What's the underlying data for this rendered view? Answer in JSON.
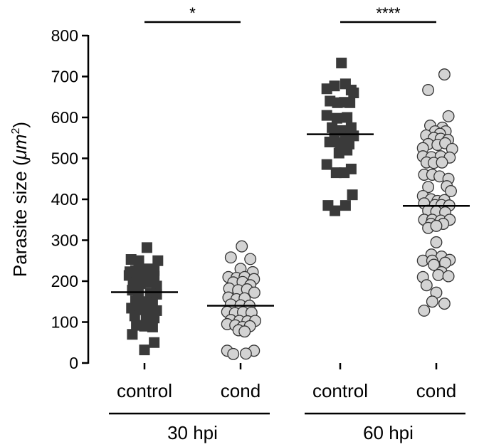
{
  "chart_data": {
    "type": "scatter",
    "style": "dot-plot with median line",
    "ylabel_main": "Parasite size (",
    "ylabel_unit": "μm",
    "ylabel_sup": "2",
    "ylabel_close": ")",
    "ylim": [
      0,
      800
    ],
    "yticks": [
      "0",
      "100",
      "200",
      "300",
      "400",
      "500",
      "600",
      "700",
      "800"
    ],
    "categories": [
      "control",
      "cond",
      "control",
      "cond"
    ],
    "groups": [
      {
        "label": "30 hpi",
        "category_indices": [
          0,
          1
        ]
      },
      {
        "label": "60 hpi",
        "category_indices": [
          2,
          3
        ]
      }
    ],
    "significance": [
      {
        "between": [
          0,
          1
        ],
        "label": "*"
      },
      {
        "between": [
          2,
          3
        ],
        "label": "****"
      }
    ],
    "series": [
      {
        "category": "control",
        "group": "30 hpi",
        "marker": "square",
        "color": "#3a3a3a",
        "median": 173,
        "points": [
          [
            -0.33,
            253
          ],
          [
            -0.14,
            250
          ],
          [
            0.06,
            282
          ],
          [
            0.33,
            250
          ],
          [
            -0.36,
            223
          ],
          [
            -0.22,
            226
          ],
          [
            -0.07,
            226
          ],
          [
            0.1,
            230
          ],
          [
            0.24,
            226
          ],
          [
            -0.38,
            214
          ],
          [
            -0.19,
            213
          ],
          [
            0.03,
            205
          ],
          [
            0.24,
            212
          ],
          [
            -0.28,
            196
          ],
          [
            -0.1,
            194
          ],
          [
            0.1,
            196
          ],
          [
            0.3,
            188
          ],
          [
            -0.3,
            178
          ],
          [
            -0.15,
            173
          ],
          [
            0.14,
            170
          ],
          [
            0.3,
            168
          ],
          [
            -0.22,
            152
          ],
          [
            -0.05,
            150
          ],
          [
            0.2,
            148
          ],
          [
            -0.32,
            134
          ],
          [
            -0.12,
            130
          ],
          [
            0.1,
            132
          ],
          [
            0.3,
            128
          ],
          [
            -0.24,
            115
          ],
          [
            0.04,
            112
          ],
          [
            0.24,
            110
          ],
          [
            -0.2,
            92
          ],
          [
            0.0,
            90
          ],
          [
            0.2,
            88
          ],
          [
            -0.3,
            70
          ],
          [
            0.24,
            50
          ],
          [
            0.0,
            32
          ]
        ]
      },
      {
        "category": "cond",
        "group": "30 hpi",
        "marker": "circle",
        "color": "#d3d3d3",
        "median": 140,
        "points": [
          [
            0.03,
            285
          ],
          [
            -0.24,
            258
          ],
          [
            0.24,
            254
          ],
          [
            0.0,
            230
          ],
          [
            0.3,
            222
          ],
          [
            -0.3,
            210
          ],
          [
            -0.1,
            208
          ],
          [
            0.1,
            210
          ],
          [
            0.33,
            205
          ],
          [
            -0.18,
            197
          ],
          [
            0.05,
            198
          ],
          [
            0.24,
            190
          ],
          [
            -0.28,
            182
          ],
          [
            -0.06,
            178
          ],
          [
            0.16,
            180
          ],
          [
            0.34,
            172
          ],
          [
            -0.3,
            160
          ],
          [
            -0.1,
            156
          ],
          [
            0.1,
            158
          ],
          [
            -0.24,
            143
          ],
          [
            0.0,
            141
          ],
          [
            0.22,
            140
          ],
          [
            -0.33,
            125
          ],
          [
            -0.14,
            122
          ],
          [
            0.06,
            124
          ],
          [
            0.27,
            123
          ],
          [
            -0.24,
            105
          ],
          [
            -0.03,
            103
          ],
          [
            0.17,
            102
          ],
          [
            0.36,
            103
          ],
          [
            -0.33,
            95
          ],
          [
            -0.13,
            92
          ],
          [
            0.05,
            88
          ],
          [
            0.23,
            90
          ],
          [
            -0.05,
            80
          ],
          [
            0.1,
            77
          ],
          [
            -0.33,
            30
          ],
          [
            0.33,
            30
          ],
          [
            -0.18,
            22
          ],
          [
            0.13,
            23
          ]
        ]
      },
      {
        "category": "control",
        "group": "60 hpi",
        "marker": "square",
        "color": "#3a3a3a",
        "median": 559,
        "points": [
          [
            0.03,
            733
          ],
          [
            -0.14,
            677
          ],
          [
            0.13,
            682
          ],
          [
            -0.33,
            670
          ],
          [
            0.27,
            667
          ],
          [
            0.33,
            660
          ],
          [
            -0.25,
            640
          ],
          [
            -0.07,
            636
          ],
          [
            0.1,
            637
          ],
          [
            0.24,
            636
          ],
          [
            -0.33,
            605
          ],
          [
            -0.08,
            598
          ],
          [
            0.17,
            600
          ],
          [
            -0.2,
            575
          ],
          [
            0.03,
            568
          ],
          [
            0.27,
            575
          ],
          [
            -0.14,
            550
          ],
          [
            0.13,
            553
          ],
          [
            0.33,
            555
          ],
          [
            -0.26,
            540
          ],
          [
            0.0,
            538
          ],
          [
            0.22,
            535
          ],
          [
            -0.03,
            513
          ],
          [
            0.17,
            520
          ],
          [
            -0.33,
            485
          ],
          [
            0.27,
            474
          ],
          [
            -0.1,
            465
          ],
          [
            0.1,
            465
          ],
          [
            0.3,
            411
          ],
          [
            -0.3,
            385
          ],
          [
            0.13,
            385
          ],
          [
            -0.13,
            372
          ]
        ]
      },
      {
        "category": "cond",
        "group": "60 hpi",
        "marker": "circle",
        "color": "#d3d3d3",
        "median": 384,
        "points": [
          [
            0.2,
            705
          ],
          [
            -0.2,
            667
          ],
          [
            0.3,
            603
          ],
          [
            -0.15,
            580
          ],
          [
            0.15,
            575
          ],
          [
            -0.03,
            566
          ],
          [
            0.23,
            566
          ],
          [
            0.09,
            560
          ],
          [
            -0.25,
            556
          ],
          [
            -0.06,
            550
          ],
          [
            0.11,
            548
          ],
          [
            0.29,
            545
          ],
          [
            -0.2,
            535
          ],
          [
            0.03,
            533
          ],
          [
            0.22,
            537
          ],
          [
            -0.33,
            525
          ],
          [
            0.39,
            523
          ],
          [
            -0.33,
            505
          ],
          [
            -0.12,
            503
          ],
          [
            0.11,
            505
          ],
          [
            0.33,
            502
          ],
          [
            -0.24,
            490
          ],
          [
            -0.06,
            489
          ],
          [
            0.14,
            490
          ],
          [
            -0.3,
            460
          ],
          [
            -0.1,
            460
          ],
          [
            0.08,
            456
          ],
          [
            0.3,
            450
          ],
          [
            0.26,
            432
          ],
          [
            0.36,
            420
          ],
          [
            -0.2,
            430
          ],
          [
            -0.33,
            408
          ],
          [
            -0.13,
            400
          ],
          [
            0.03,
            396
          ],
          [
            0.2,
            398
          ],
          [
            -0.3,
            390
          ],
          [
            -0.03,
            386
          ],
          [
            0.13,
            386
          ],
          [
            0.32,
            385
          ],
          [
            -0.2,
            372
          ],
          [
            0.0,
            370
          ],
          [
            0.22,
            368
          ],
          [
            -0.3,
            350
          ],
          [
            -0.1,
            350
          ],
          [
            0.11,
            348
          ],
          [
            0.33,
            350
          ],
          [
            -0.13,
            340
          ],
          [
            0.17,
            340
          ],
          [
            -0.2,
            330
          ],
          [
            0.0,
            335
          ],
          [
            0.0,
            295
          ],
          [
            -0.12,
            265
          ],
          [
            0.13,
            260
          ],
          [
            -0.33,
            250
          ],
          [
            -0.1,
            250
          ],
          [
            0.33,
            252
          ],
          [
            0.22,
            245
          ],
          [
            -0.06,
            240
          ],
          [
            0.13,
            222
          ],
          [
            -0.33,
            210
          ],
          [
            0.05,
            215
          ],
          [
            0.3,
            212
          ],
          [
            -0.24,
            190
          ],
          [
            0.0,
            172
          ],
          [
            -0.1,
            150
          ],
          [
            0.2,
            145
          ],
          [
            -0.3,
            128
          ]
        ]
      }
    ]
  }
}
